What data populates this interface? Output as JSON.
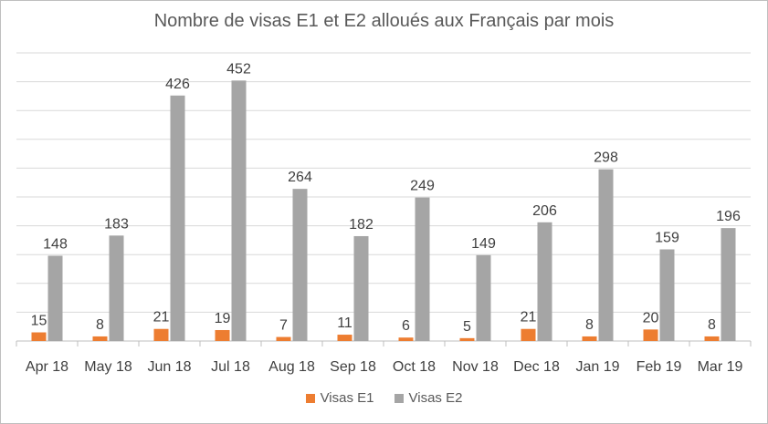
{
  "chart_data": {
    "type": "bar",
    "title": "Nombre de visas E1 et E2 alloués aux Français par mois",
    "xlabel": "",
    "ylabel": "",
    "ylim": [
      0,
      500
    ],
    "grid": true,
    "legend_position": "bottom",
    "categories": [
      "Apr 18",
      "May 18",
      "Jun 18",
      "Jul 18",
      "Aug 18",
      "Sep 18",
      "Oct 18",
      "Nov 18",
      "Dec 18",
      "Jan 19",
      "Feb 19",
      "Mar 19"
    ],
    "series": [
      {
        "name": "Visas E1",
        "color": "#ed7d31",
        "values": [
          15,
          8,
          21,
          19,
          7,
          11,
          6,
          5,
          21,
          8,
          20,
          8
        ]
      },
      {
        "name": "Visas E2",
        "color": "#a5a5a5",
        "values": [
          148,
          183,
          426,
          452,
          264,
          182,
          249,
          149,
          206,
          298,
          159,
          196
        ]
      }
    ]
  }
}
